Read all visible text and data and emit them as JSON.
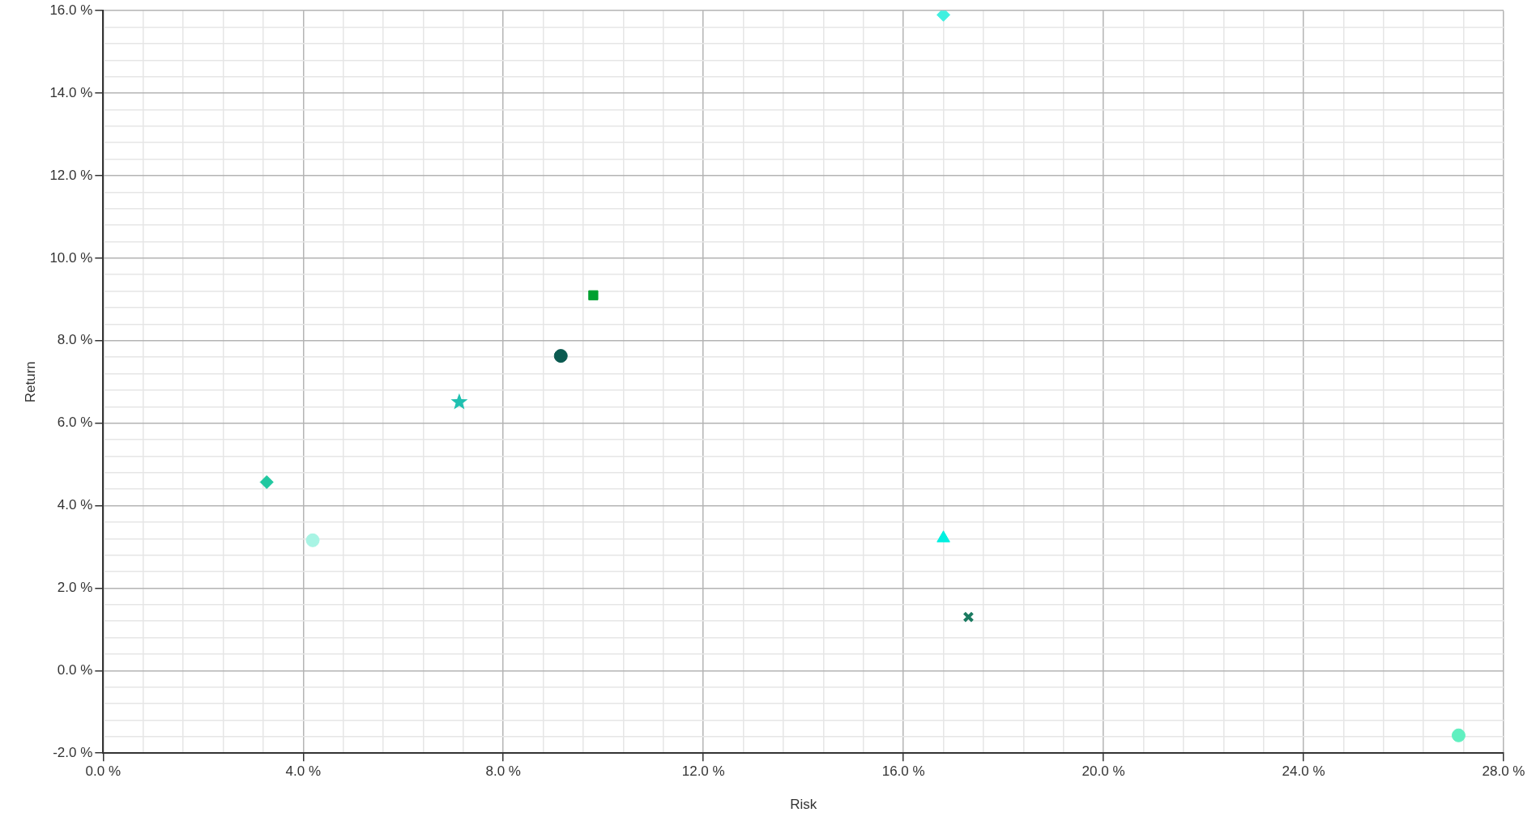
{
  "chart_data": {
    "type": "scatter",
    "xlabel": "Risk",
    "ylabel": "Return",
    "grid": true,
    "legend": false,
    "xlim": [
      0,
      28
    ],
    "ylim": [
      -2,
      16
    ],
    "xticks": [
      {
        "value": 0,
        "label": "0.0 %"
      },
      {
        "value": 0.8,
        "label": null
      },
      {
        "value": 1.6,
        "label": null
      },
      {
        "value": 2.4,
        "label": null
      },
      {
        "value": 3.2,
        "label": null
      },
      {
        "value": 4,
        "label": "4.0 %"
      },
      {
        "value": 4.8,
        "label": null
      },
      {
        "value": 5.6,
        "label": null
      },
      {
        "value": 6.4,
        "label": null
      },
      {
        "value": 7.2,
        "label": null
      },
      {
        "value": 8,
        "label": "8.0 %"
      },
      {
        "value": 8.8,
        "label": null
      },
      {
        "value": 9.6,
        "label": null
      },
      {
        "value": 10.4,
        "label": null
      },
      {
        "value": 11.2,
        "label": null
      },
      {
        "value": 12,
        "label": "12.0 %"
      },
      {
        "value": 12.8,
        "label": null
      },
      {
        "value": 13.6,
        "label": null
      },
      {
        "value": 14.4,
        "label": null
      },
      {
        "value": 15.2,
        "label": null
      },
      {
        "value": 16,
        "label": "16.0 %"
      },
      {
        "value": 16.8,
        "label": null
      },
      {
        "value": 17.6,
        "label": null
      },
      {
        "value": 18.4,
        "label": null
      },
      {
        "value": 19.2,
        "label": null
      },
      {
        "value": 20,
        "label": "20.0 %"
      },
      {
        "value": 20.8,
        "label": null
      },
      {
        "value": 21.6,
        "label": null
      },
      {
        "value": 22.4,
        "label": null
      },
      {
        "value": 23.2,
        "label": null
      },
      {
        "value": 24,
        "label": "24.0 %"
      },
      {
        "value": 24.8,
        "label": null
      },
      {
        "value": 25.6,
        "label": null
      },
      {
        "value": 26.4,
        "label": null
      },
      {
        "value": 27.2,
        "label": null
      },
      {
        "value": 28,
        "label": "28.0 %"
      }
    ],
    "yticks": [
      {
        "value": -2,
        "label": "-2.0 %"
      },
      {
        "value": -1.6,
        "label": null
      },
      {
        "value": -1.2,
        "label": null
      },
      {
        "value": -0.8,
        "label": null
      },
      {
        "value": -0.4,
        "label": null
      },
      {
        "value": 0,
        "label": "0.0 %"
      },
      {
        "value": 0.4,
        "label": null
      },
      {
        "value": 0.8,
        "label": null
      },
      {
        "value": 1.2,
        "label": null
      },
      {
        "value": 1.6,
        "label": null
      },
      {
        "value": 2,
        "label": "2.0 %"
      },
      {
        "value": 2.4,
        "label": null
      },
      {
        "value": 2.8,
        "label": null
      },
      {
        "value": 3.2,
        "label": null
      },
      {
        "value": 3.6,
        "label": null
      },
      {
        "value": 4,
        "label": "4.0 %"
      },
      {
        "value": 4.4,
        "label": null
      },
      {
        "value": 4.8,
        "label": null
      },
      {
        "value": 5.2,
        "label": null
      },
      {
        "value": 5.6,
        "label": null
      },
      {
        "value": 6,
        "label": "6.0 %"
      },
      {
        "value": 6.4,
        "label": null
      },
      {
        "value": 6.8,
        "label": null
      },
      {
        "value": 7.2,
        "label": null
      },
      {
        "value": 7.6,
        "label": null
      },
      {
        "value": 8,
        "label": "8.0 %"
      },
      {
        "value": 8.4,
        "label": null
      },
      {
        "value": 8.8,
        "label": null
      },
      {
        "value": 9.2,
        "label": null
      },
      {
        "value": 9.6,
        "label": null
      },
      {
        "value": 10,
        "label": "10.0 %"
      },
      {
        "value": 10.4,
        "label": null
      },
      {
        "value": 10.8,
        "label": null
      },
      {
        "value": 11.2,
        "label": null
      },
      {
        "value": 11.6,
        "label": null
      },
      {
        "value": 12,
        "label": "12.0 %"
      },
      {
        "value": 12.4,
        "label": null
      },
      {
        "value": 12.8,
        "label": null
      },
      {
        "value": 13.2,
        "label": null
      },
      {
        "value": 13.6,
        "label": null
      },
      {
        "value": 14,
        "label": "14.0 %"
      },
      {
        "value": 14.4,
        "label": null
      },
      {
        "value": 14.8,
        "label": null
      },
      {
        "value": 15.2,
        "label": null
      },
      {
        "value": 15.6,
        "label": null
      },
      {
        "value": 16,
        "label": "16.0 %"
      }
    ],
    "series": [
      {
        "color": "#40f0e0",
        "marker": "diamond",
        "x": [
          16.8
        ],
        "values": [
          15.9
        ]
      },
      {
        "color": "#00a030",
        "marker": "square",
        "x": [
          9.8
        ],
        "values": [
          9.1
        ]
      },
      {
        "color": "#0b5a50",
        "marker": "circle",
        "x": [
          9.15
        ],
        "values": [
          7.63
        ]
      },
      {
        "color": "#20c0b0",
        "marker": "star",
        "x": [
          7.12
        ],
        "values": [
          6.51
        ]
      },
      {
        "color": "#20c8a0",
        "marker": "diamond",
        "x": [
          3.27
        ],
        "values": [
          4.57
        ]
      },
      {
        "color": "#a8f4e4",
        "marker": "circle",
        "x": [
          4.19
        ],
        "values": [
          3.16
        ]
      },
      {
        "color": "#00f0e0",
        "marker": "triangle",
        "x": [
          16.8
        ],
        "values": [
          3.21
        ]
      },
      {
        "color": "#1a7a60",
        "marker": "cross",
        "x": [
          17.3
        ],
        "values": [
          1.3
        ]
      },
      {
        "color": "#60f0c0",
        "marker": "circle",
        "x": [
          27.1
        ],
        "values": [
          -1.57
        ]
      }
    ]
  }
}
